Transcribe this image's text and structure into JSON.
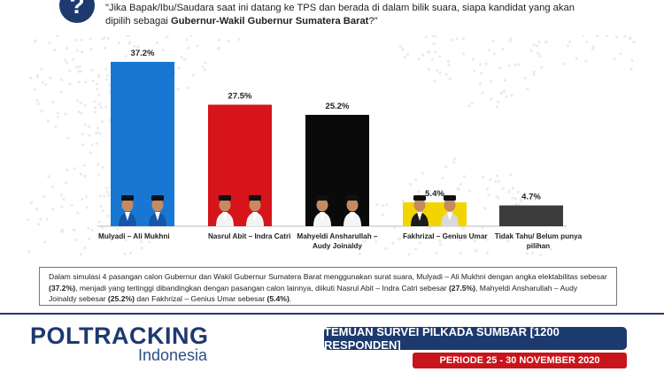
{
  "question": {
    "icon": "question-mark-icon",
    "text_plain": "\"Jika Bapak/Ibu/Saudara saat ini datang ke TPS dan berada di dalam bilik suara, siapa kandidat yang akan dipilih sebagai ",
    "text_bold": "Gubernur-Wakil Gubernur Sumatera Barat",
    "text_end": "?\""
  },
  "chart_data": {
    "type": "bar",
    "categories": [
      "Mulyadi – Ali Mukhni",
      "Nasrul Abit – Indra Catri",
      "Mahyeldi Ansharullah – Audy Joinaldy",
      "Fakhrizal – Genius Umar",
      "Tidak Tahu/ Belum punya pilihan"
    ],
    "category_lines": [
      [
        "Mulyadi – Ali Mukhni"
      ],
      [
        "Nasrul Abit – Indra Catri"
      ],
      [
        "Mahyeldi Ansharullah –",
        "Audy Joinaldy"
      ],
      [
        "Fakhrizal – Genius Umar"
      ],
      [
        "Tidak Tahu/ Belum punya",
        "pilihan"
      ]
    ],
    "values": [
      37.2,
      27.5,
      25.2,
      5.4,
      4.7
    ],
    "value_labels": [
      "37.2%",
      "27.5%",
      "25.2%",
      "5.4%",
      "4.7%"
    ],
    "colors": [
      "#1877d2",
      "#d7141a",
      "#0a0a0a",
      "#f2d500",
      "#3b3b3b"
    ],
    "has_photo": [
      true,
      true,
      true,
      true,
      false
    ],
    "ylim": [
      0,
      40
    ],
    "grid": false,
    "legend": "none"
  },
  "summary": {
    "t1": "Dalam simulasi 4 pasangan calon Gubernur dan Wakil Gubernur Sumatera Barat menggunakan surat suara, Mulyadi – Ali Mukhni dengan angka elektabilitas sebesar ",
    "b1": "(37.2%)",
    "t2": ", menjadi yang tertinggi dibandingkan dengan pasangan calon lainnya, diikuti Nasrul Abit – Indra Catri sebesar ",
    "b2": "(27.5%)",
    "t3": ", Mahyeldi Ansharullah – Audy Joinaldy sebesar ",
    "b3": "(25.2%)",
    "t4": " dan Fakhrizal – Genius Umar sebesar ",
    "b4": "(5.4%)",
    "t5": "."
  },
  "footer": {
    "logo_main": "POLTRACKING",
    "logo_sub": "Indonesia",
    "banner": "TEMUAN SURVEI PILKADA SUMBAR [1200 RESPONDEN]",
    "period": "PERIODE 25 - 30 NOVEMBER 2020"
  },
  "colors": {
    "navy": "#1d3a6e",
    "red": "#c8151b"
  }
}
